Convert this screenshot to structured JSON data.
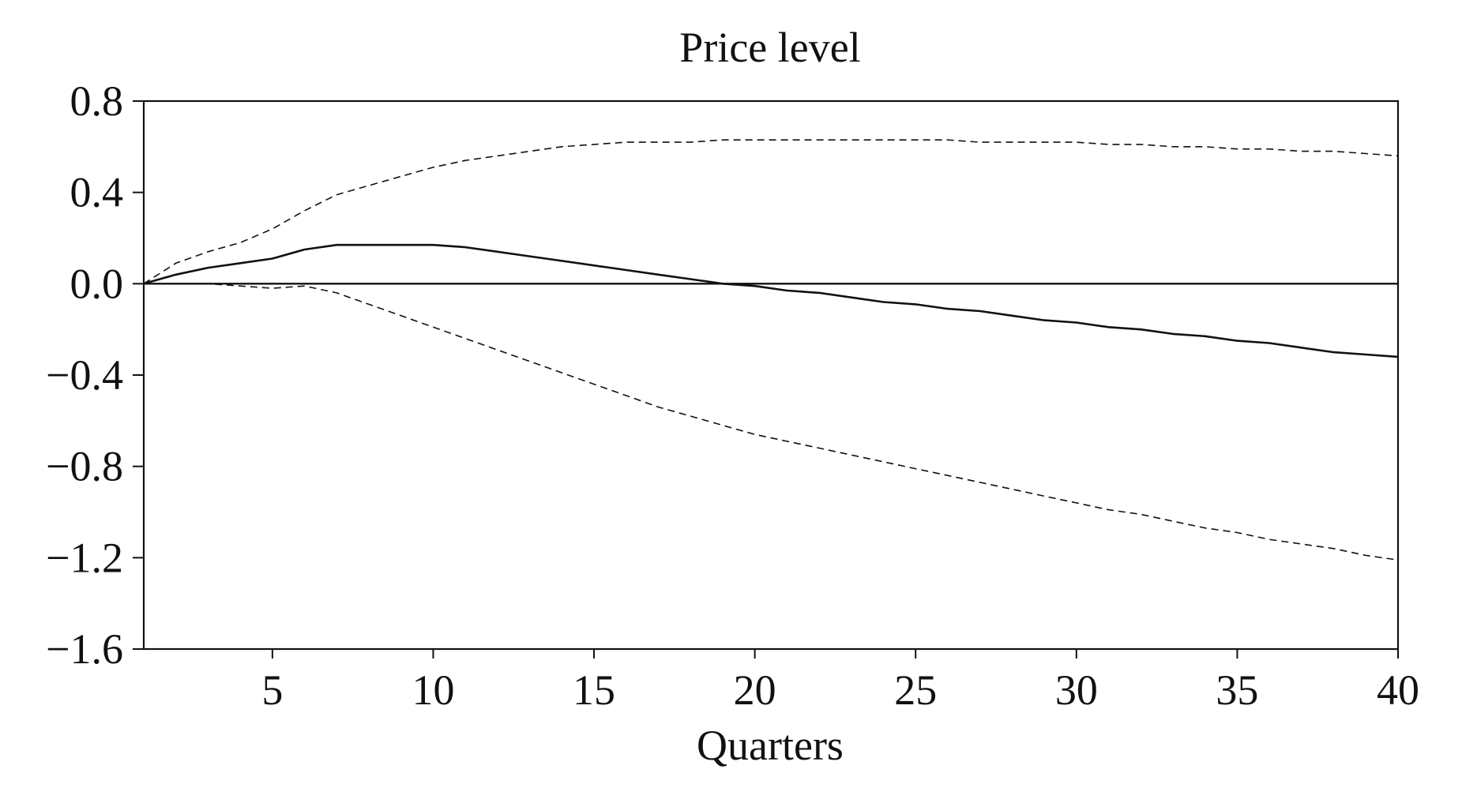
{
  "chart_data": {
    "type": "line",
    "title": "Price level",
    "xlabel": "Quarters",
    "ylabel": "",
    "xlim": [
      1,
      40
    ],
    "ylim": [
      -1.6,
      0.8
    ],
    "x_ticks": [
      5,
      10,
      15,
      20,
      25,
      30,
      35,
      40
    ],
    "y_ticks": [
      0.8,
      0.4,
      0.0,
      -0.4,
      -0.8,
      -1.2,
      -1.6
    ],
    "y_tick_labels": [
      "0.8",
      "0.4",
      "0.0",
      "−0.4",
      "−0.8",
      "−1.2",
      "−1.6"
    ],
    "x_tick_labels": [
      "5",
      "10",
      "15",
      "20",
      "25",
      "30",
      "35",
      "40"
    ],
    "zero_line": 0.0,
    "grid": false,
    "legend": "none",
    "series": [
      {
        "style": "solid",
        "x": [
          1,
          2,
          3,
          4,
          5,
          6,
          7,
          8,
          9,
          10,
          11,
          12,
          13,
          14,
          15,
          16,
          17,
          18,
          19,
          20,
          21,
          22,
          23,
          24,
          25,
          26,
          27,
          28,
          29,
          30,
          31,
          32,
          33,
          34,
          35,
          36,
          37,
          38,
          39,
          40
        ],
        "values": [
          0.0,
          0.04,
          0.07,
          0.09,
          0.11,
          0.15,
          0.17,
          0.17,
          0.17,
          0.17,
          0.16,
          0.14,
          0.12,
          0.1,
          0.08,
          0.06,
          0.04,
          0.02,
          0.0,
          -0.01,
          -0.03,
          -0.04,
          -0.06,
          -0.08,
          -0.09,
          -0.11,
          -0.12,
          -0.14,
          -0.16,
          -0.17,
          -0.19,
          -0.2,
          -0.22,
          -0.23,
          -0.25,
          -0.26,
          -0.28,
          -0.3,
          -0.31,
          -0.32
        ]
      },
      {
        "style": "dashed",
        "x": [
          1,
          2,
          3,
          4,
          5,
          6,
          7,
          8,
          9,
          10,
          11,
          12,
          13,
          14,
          15,
          16,
          17,
          18,
          19,
          20,
          21,
          22,
          23,
          24,
          25,
          26,
          27,
          28,
          29,
          30,
          31,
          32,
          33,
          34,
          35,
          36,
          37,
          38,
          39,
          40
        ],
        "values": [
          0.0,
          0.09,
          0.14,
          0.18,
          0.24,
          0.32,
          0.39,
          0.43,
          0.47,
          0.51,
          0.54,
          0.56,
          0.58,
          0.6,
          0.61,
          0.62,
          0.62,
          0.62,
          0.63,
          0.63,
          0.63,
          0.63,
          0.63,
          0.63,
          0.63,
          0.63,
          0.62,
          0.62,
          0.62,
          0.62,
          0.61,
          0.61,
          0.6,
          0.6,
          0.59,
          0.59,
          0.58,
          0.58,
          0.57,
          0.56
        ]
      },
      {
        "style": "dashed",
        "x": [
          1,
          2,
          3,
          4,
          5,
          6,
          7,
          8,
          9,
          10,
          11,
          12,
          13,
          14,
          15,
          16,
          17,
          18,
          19,
          20,
          21,
          22,
          23,
          24,
          25,
          26,
          27,
          28,
          29,
          30,
          31,
          32,
          33,
          34,
          35,
          36,
          37,
          38,
          39,
          40
        ],
        "values": [
          0.0,
          0.0,
          0.0,
          -0.01,
          -0.02,
          -0.01,
          -0.04,
          -0.09,
          -0.14,
          -0.19,
          -0.24,
          -0.29,
          -0.34,
          -0.39,
          -0.44,
          -0.49,
          -0.54,
          -0.58,
          -0.62,
          -0.66,
          -0.69,
          -0.72,
          -0.75,
          -0.78,
          -0.81,
          -0.84,
          -0.87,
          -0.9,
          -0.93,
          -0.96,
          -0.99,
          -1.01,
          -1.04,
          -1.07,
          -1.09,
          -1.12,
          -1.14,
          -1.16,
          -1.19,
          -1.21
        ]
      }
    ]
  }
}
